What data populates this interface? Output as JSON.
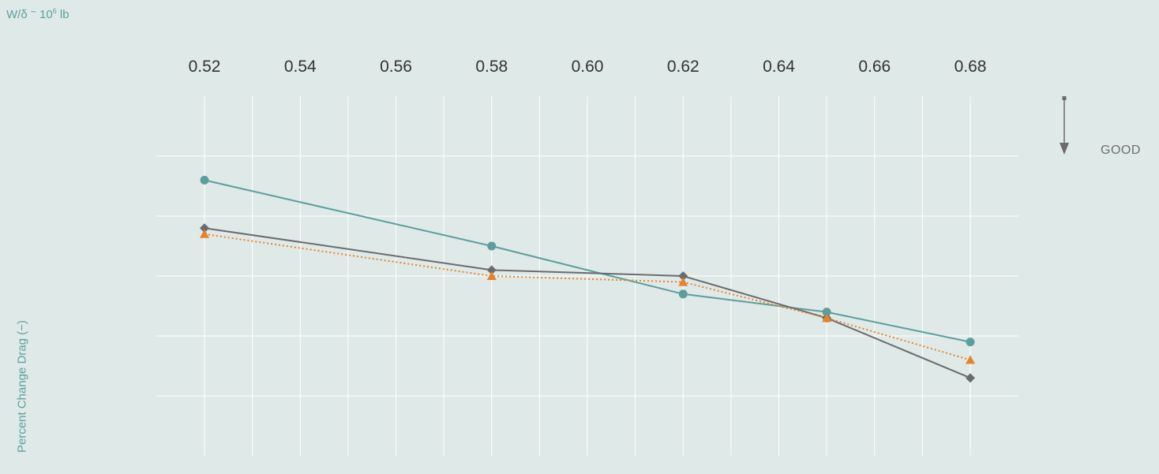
{
  "header": {
    "unit_prefix": "W/δ",
    "unit_tilde": "~",
    "unit_base": "10",
    "unit_exp": "6",
    "unit_suffix": "lb"
  },
  "annotation": {
    "good_label": "GOOD",
    "arrow_icon": "down-arrow-icon"
  },
  "chart_data": {
    "type": "line",
    "title": "",
    "xlabel": "W/δ ~ 10⁶ lb",
    "ylabel": "Percent Change Drag  (−)",
    "x_ticks": [
      "0.52",
      "0.54",
      "0.56",
      "0.58",
      "0.60",
      "0.62",
      "0.64",
      "0.66",
      "0.68"
    ],
    "xlim": [
      0.52,
      0.68
    ],
    "ylim": [
      0,
      6
    ],
    "grid": true,
    "legend": "none",
    "series": [
      {
        "color": "#5a9f9c",
        "marker": "circle",
        "line": "solid",
        "points": [
          [
            0.52,
            4.6
          ],
          [
            0.58,
            3.5
          ],
          [
            0.62,
            2.7
          ],
          [
            0.65,
            2.4
          ],
          [
            0.68,
            1.9
          ]
        ]
      },
      {
        "color": "#6b6b6d",
        "marker": "diamond",
        "line": "solid",
        "points": [
          [
            0.52,
            3.8
          ],
          [
            0.58,
            3.1
          ],
          [
            0.62,
            3.0
          ],
          [
            0.65,
            2.3
          ],
          [
            0.68,
            1.3
          ]
        ]
      },
      {
        "color": "#e8822a",
        "marker": "triangle",
        "line": "dotted",
        "points": [
          [
            0.52,
            3.7
          ],
          [
            0.58,
            3.0
          ],
          [
            0.62,
            2.9
          ],
          [
            0.65,
            2.3
          ],
          [
            0.68,
            1.6
          ]
        ]
      }
    ]
  }
}
